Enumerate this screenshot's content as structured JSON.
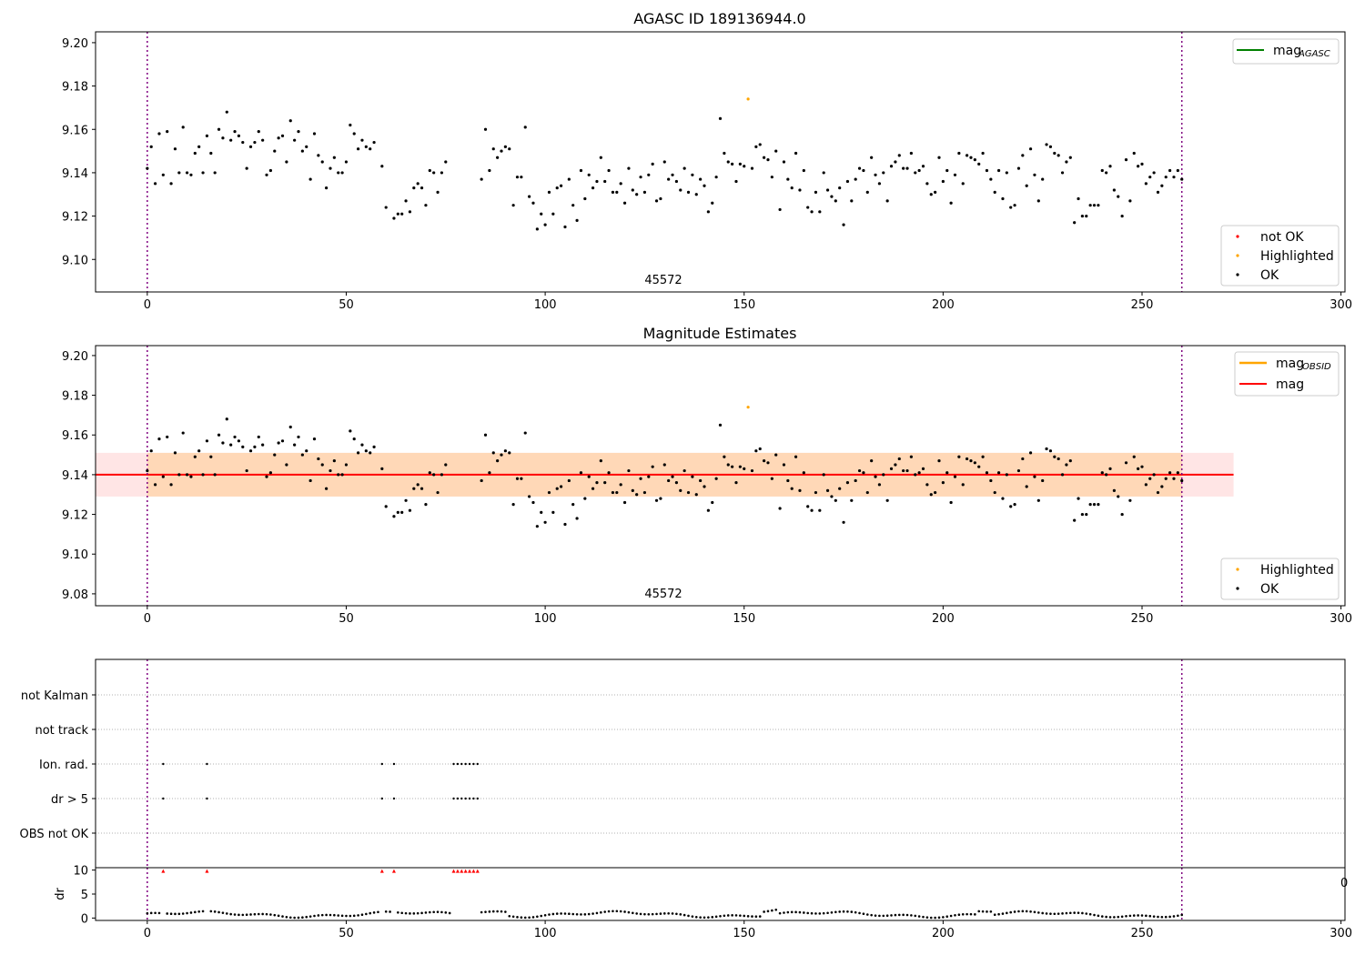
{
  "chart_data": [
    {
      "type": "scatter",
      "title": "AGASC ID 189136944.0",
      "xlim": [
        -13,
        301
      ],
      "ylim": [
        9.085,
        9.205
      ],
      "xticks": [
        0,
        50,
        100,
        150,
        200,
        250,
        300
      ],
      "yticks": [
        "9.10",
        "9.12",
        "9.14",
        "9.16",
        "9.18",
        "9.20"
      ],
      "vlines": [
        0,
        260
      ],
      "annotation": "45572",
      "legend_top": [
        {
          "name": "mag",
          "sub": "AGASC",
          "color": "#008000"
        }
      ],
      "legend_bottom": [
        {
          "name": "not OK",
          "color": "#ff0000"
        },
        {
          "name": "Highlighted",
          "color": "#ffa500"
        },
        {
          "name": "OK",
          "color": "#000000"
        }
      ],
      "highlighted": [
        {
          "x": 151,
          "y": 9.174
        }
      ],
      "series_ok_y": [
        9.142,
        9.152,
        9.135,
        9.158,
        9.139,
        9.159,
        9.135,
        9.151,
        9.14,
        9.161,
        9.14,
        9.139,
        9.149,
        9.152,
        9.14,
        9.157,
        9.149,
        9.14,
        9.16,
        9.156,
        9.168,
        9.155,
        9.159,
        9.157,
        9.154,
        9.142,
        9.152,
        9.154,
        9.159,
        9.155,
        9.139,
        9.141,
        9.15,
        9.156,
        9.157,
        9.145,
        9.164,
        9.155,
        9.159,
        9.15,
        9.152,
        9.137,
        9.158,
        9.148,
        9.145,
        9.133,
        9.142,
        9.147,
        9.14,
        9.14,
        9.145,
        9.162,
        9.158,
        9.151,
        9.155,
        9.152,
        9.151,
        9.154,
        null,
        9.143,
        9.124,
        null,
        9.119,
        9.121,
        9.121,
        9.127,
        9.122,
        9.133,
        9.135,
        9.133,
        9.125,
        9.141,
        9.14,
        9.131,
        9.14,
        9.145,
        null,
        null,
        null,
        null,
        null,
        null,
        null,
        null,
        9.137,
        9.16,
        9.141,
        9.151,
        9.147,
        9.15,
        9.152,
        9.151,
        9.125,
        9.138,
        9.138,
        9.161,
        9.129,
        9.126,
        9.114,
        9.121,
        9.116,
        9.131,
        9.121,
        9.133,
        9.134,
        9.115,
        9.137,
        9.125,
        9.118,
        9.141,
        9.128,
        9.139,
        9.133,
        9.136,
        9.147,
        9.136,
        9.141,
        9.131,
        9.131,
        9.135,
        9.126,
        9.142,
        9.132,
        9.13,
        9.138,
        9.131,
        9.139,
        9.144,
        9.127,
        9.128,
        9.145,
        9.137,
        9.139,
        9.136,
        9.132,
        9.142,
        9.131,
        9.139,
        9.13,
        9.137,
        9.134,
        9.122,
        9.126,
        9.138,
        9.165,
        9.149,
        9.145,
        9.144,
        9.136,
        9.144,
        9.143,
        null,
        9.142,
        9.152,
        9.153,
        9.147,
        9.146,
        9.138,
        9.15,
        9.123,
        9.145,
        9.137,
        9.133,
        9.149,
        9.132,
        9.141,
        9.124,
        9.122,
        9.131,
        9.122,
        9.14,
        9.132,
        9.129,
        9.127,
        9.133,
        9.116,
        9.136,
        9.127,
        9.137,
        9.142,
        9.141,
        9.131,
        9.147,
        9.139,
        9.135,
        9.14,
        9.127,
        9.143,
        9.145,
        9.148,
        9.142,
        9.142,
        9.149,
        9.14,
        9.141,
        9.143,
        9.135,
        9.13,
        9.131,
        9.147,
        9.136,
        9.141,
        9.126,
        9.139,
        9.149,
        9.135,
        9.148,
        9.147,
        9.146,
        9.144,
        9.149,
        9.141,
        9.137,
        9.131,
        9.141,
        9.128,
        9.14,
        9.124,
        9.125,
        9.142,
        9.148,
        9.134,
        9.151,
        9.139,
        9.127,
        9.137,
        9.153,
        9.152,
        9.149,
        9.148,
        9.14,
        9.145,
        9.147,
        9.117,
        9.128,
        9.12,
        9.12,
        9.125,
        9.125,
        9.125,
        9.141,
        9.14,
        9.143,
        9.132,
        9.129,
        9.12,
        9.146,
        9.127,
        9.149,
        9.143,
        9.144,
        9.135,
        9.138,
        9.14,
        9.131,
        9.134,
        9.138,
        9.141,
        9.138,
        9.141,
        9.137
      ]
    },
    {
      "type": "scatter",
      "title": "Magnitude Estimates",
      "xlim": [
        -13,
        301
      ],
      "ylim": [
        9.074,
        9.205
      ],
      "xticks": [
        0,
        50,
        100,
        150,
        200,
        250,
        300
      ],
      "yticks": [
        "9.08",
        "9.10",
        "9.12",
        "9.14",
        "9.16",
        "9.18",
        "9.20"
      ],
      "vlines": [
        0,
        260
      ],
      "annotation": "45572",
      "mag_line": {
        "y": 9.14,
        "x0": -13,
        "x1": 273,
        "color": "#ff0000"
      },
      "obsid_band": {
        "y0": 9.129,
        "y1": 9.151,
        "x0": 0,
        "x1": 260,
        "color": "#ffa500"
      },
      "mag_band": {
        "y0": 9.129,
        "y1": 9.151,
        "x0": -13,
        "x1": 273,
        "color": "#ff0000"
      },
      "legend_top": [
        {
          "name": "mag",
          "sub": "OBSID",
          "color": "#ffa500"
        },
        {
          "name": "mag",
          "sub": "",
          "color": "#ff0000"
        }
      ],
      "legend_bottom": [
        {
          "name": "Highlighted",
          "color": "#ffa500"
        },
        {
          "name": "OK",
          "color": "#000000"
        }
      ],
      "highlighted": [
        {
          "x": 151,
          "y": 9.174
        }
      ]
    },
    {
      "type": "scatter",
      "flags_panel": {
        "ylabels": [
          "not Kalman",
          "not track",
          "Ion. rad.",
          "dr > 5",
          "OBS not OK"
        ],
        "xlim": [
          -13,
          301
        ],
        "vlines": [
          0,
          260
        ],
        "ion_rad_x": [
          4,
          15,
          59,
          62,
          77,
          78,
          79,
          80,
          81,
          82,
          83
        ],
        "dr5_x": [
          4,
          15,
          59,
          62,
          77,
          78,
          79,
          80,
          81,
          82,
          83
        ]
      },
      "dr_panel": {
        "ylabel": "dr",
        "ylim": [
          -0.5,
          10.5
        ],
        "yticks": [
          "0",
          "5",
          "10"
        ],
        "xticks": [
          0,
          50,
          100,
          150,
          200,
          250,
          300
        ],
        "clipped_tick": "0",
        "clipped_x": [
          4,
          15,
          59,
          62,
          77,
          78,
          79,
          80,
          81,
          82,
          83
        ]
      }
    }
  ]
}
